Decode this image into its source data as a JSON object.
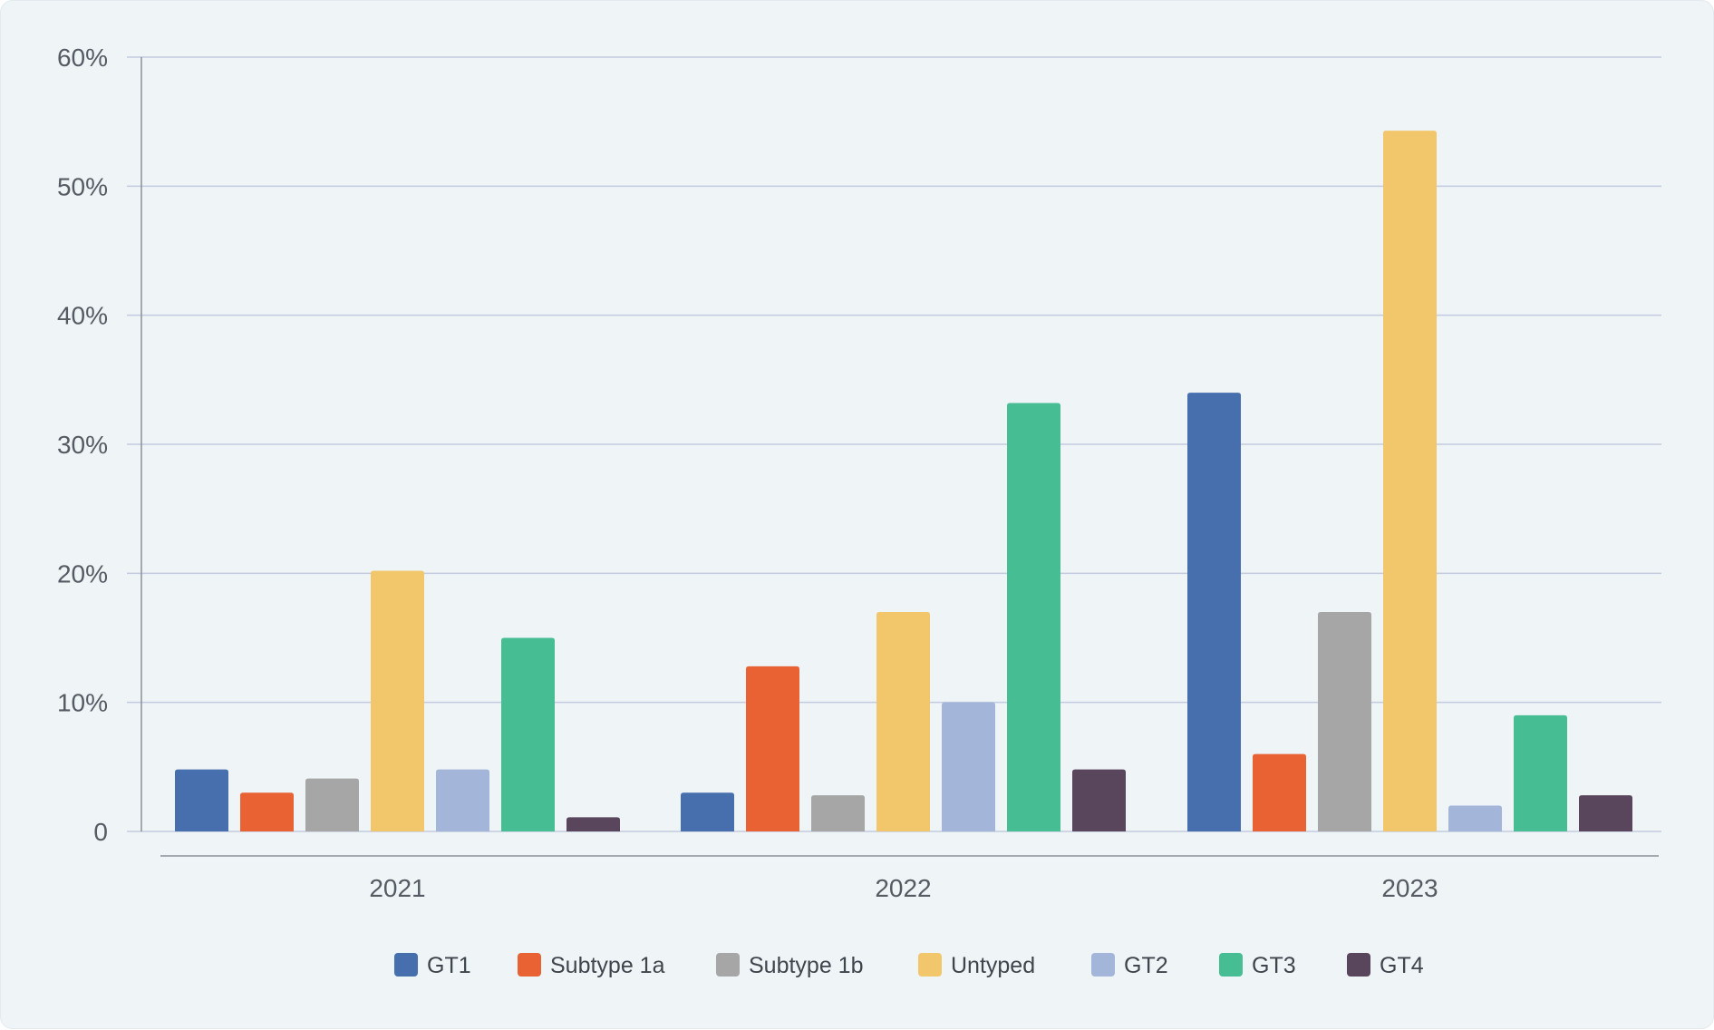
{
  "chart_data": {
    "type": "bar",
    "categories": [
      "2021",
      "2022",
      "2023"
    ],
    "series": [
      {
        "name": "GT1",
        "color": "#476ead",
        "values": [
          4.8,
          3.0,
          34.0
        ]
      },
      {
        "name": "Subtype 1a",
        "color": "#e86234",
        "values": [
          3.0,
          12.8,
          6.0
        ]
      },
      {
        "name": "Subtype 1b",
        "color": "#a6a6a6",
        "values": [
          4.1,
          2.8,
          17.0
        ]
      },
      {
        "name": "Untyped",
        "color": "#f2c76b",
        "values": [
          20.2,
          17.0,
          54.3
        ]
      },
      {
        "name": "GT2",
        "color": "#a3b5d8",
        "values": [
          4.8,
          10.0,
          2.0
        ]
      },
      {
        "name": "GT3",
        "color": "#46bd93",
        "values": [
          15.0,
          33.2,
          9.0
        ]
      },
      {
        "name": "GT4",
        "color": "#59455c",
        "values": [
          1.1,
          4.8,
          2.8
        ]
      }
    ],
    "yaxis": {
      "min": 0,
      "max": 60,
      "ticks": [
        0,
        10,
        20,
        30,
        40,
        50,
        60
      ],
      "tick_labels": [
        "0",
        "10%",
        "20%",
        "30%",
        "40%",
        "50%",
        "60%"
      ]
    },
    "title": "",
    "xlabel": "",
    "ylabel": "",
    "grid": true,
    "legend_position": "bottom-center"
  }
}
